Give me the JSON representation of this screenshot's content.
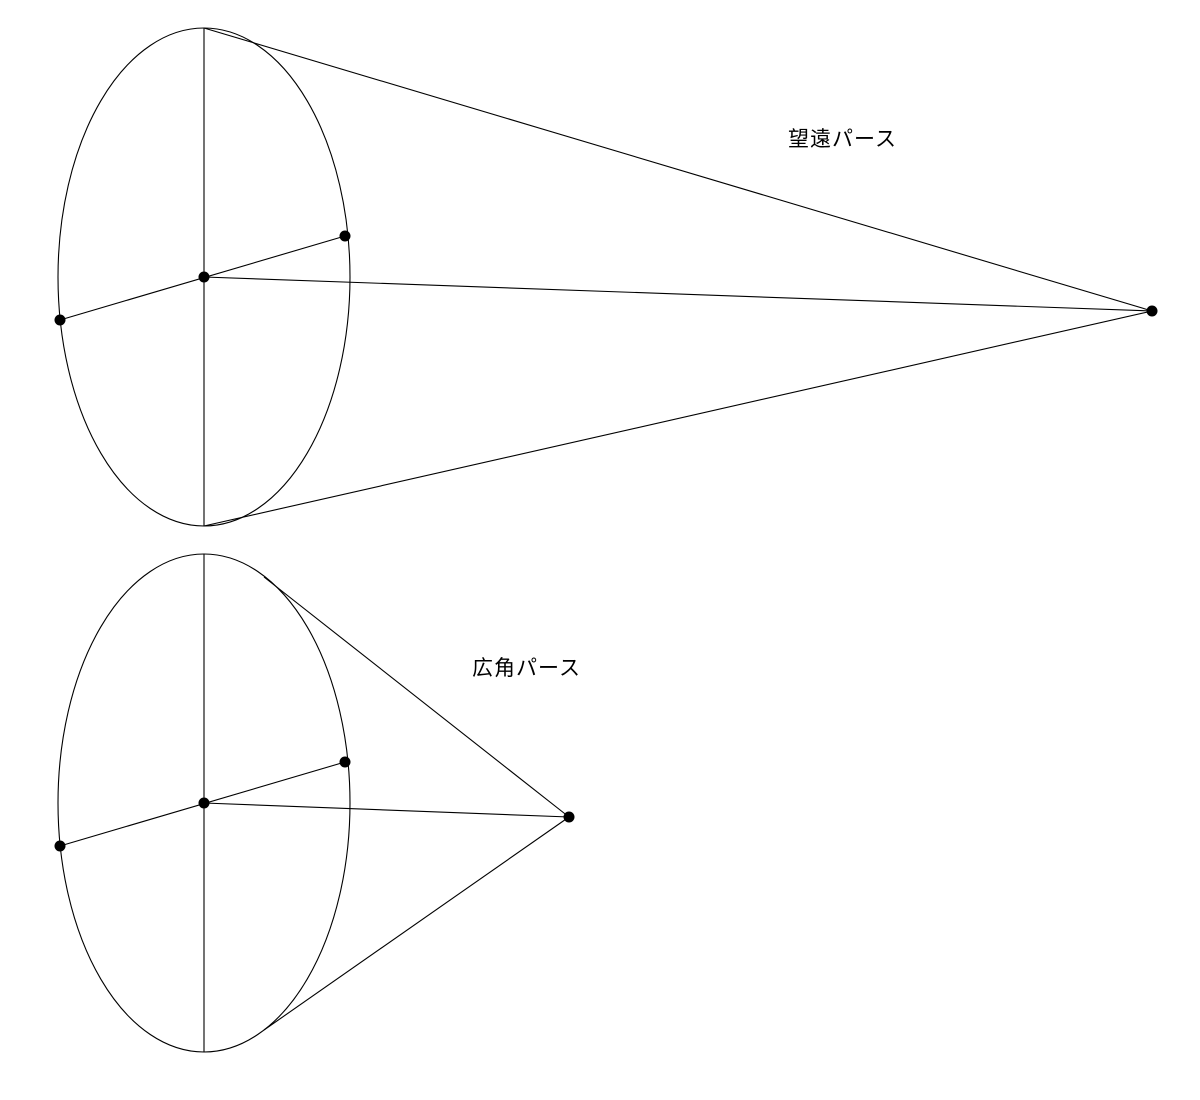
{
  "diagrams": [
    {
      "id": "telephoto",
      "label": "望遠パース",
      "projection": "telephoto"
    },
    {
      "id": "wide",
      "label": "広角パース",
      "projection": "wide-angle"
    }
  ],
  "colors": {
    "line": "#000000",
    "dot": "#000000",
    "background": "#ffffff"
  }
}
